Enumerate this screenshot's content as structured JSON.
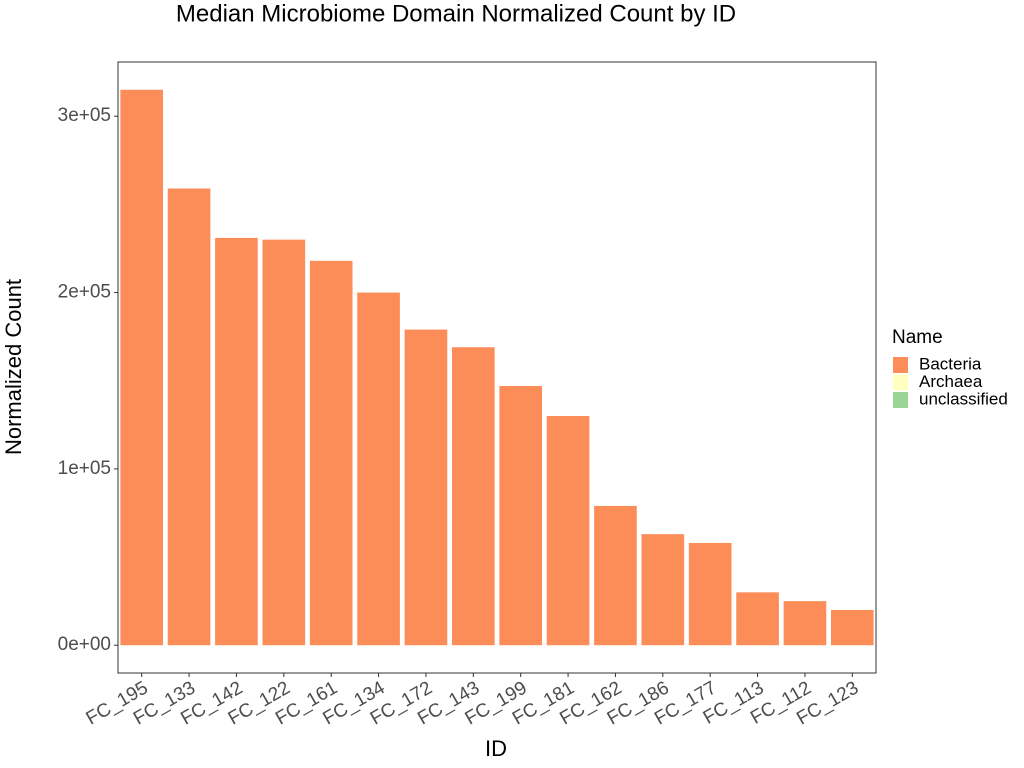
{
  "chart_data": {
    "type": "bar",
    "stacked": true,
    "title": "Median Microbiome Domain Normalized Count by ID",
    "x_label": "ID",
    "y_label": "Normalized Count",
    "legend_title": "Name",
    "legend_position": "right",
    "categories": [
      "FC_195",
      "FC_133",
      "FC_142",
      "FC_122",
      "FC_161",
      "FC_134",
      "FC_172",
      "FC_143",
      "FC_199",
      "FC_181",
      "FC_162",
      "FC_186",
      "FC_177",
      "FC_113",
      "FC_112",
      "FC_123"
    ],
    "series": [
      {
        "name": "Bacteria",
        "color": "#fc8d59",
        "values": [
          315000,
          259000,
          231000,
          230000,
          218000,
          200000,
          179000,
          169000,
          147000,
          130000,
          79000,
          63000,
          58000,
          30000,
          25000,
          20000
        ]
      },
      {
        "name": "Archaea",
        "color": "#ffffbf",
        "values": [
          0,
          0,
          0,
          0,
          0,
          0,
          0,
          0,
          0,
          0,
          0,
          0,
          0,
          0,
          0,
          0
        ]
      },
      {
        "name": "unclassified",
        "color": "#99d594",
        "values": [
          0,
          0,
          0,
          0,
          0,
          0,
          0,
          0,
          0,
          0,
          0,
          0,
          0,
          0,
          0,
          0
        ]
      }
    ],
    "ylim": [
      -15750,
      330750
    ],
    "yticks": [
      {
        "value": 0,
        "label": "0e+00"
      },
      {
        "value": 100000,
        "label": "1e+05"
      },
      {
        "value": 200000,
        "label": "2e+05"
      },
      {
        "value": 300000,
        "label": "3e+05"
      }
    ],
    "grid": false
  }
}
